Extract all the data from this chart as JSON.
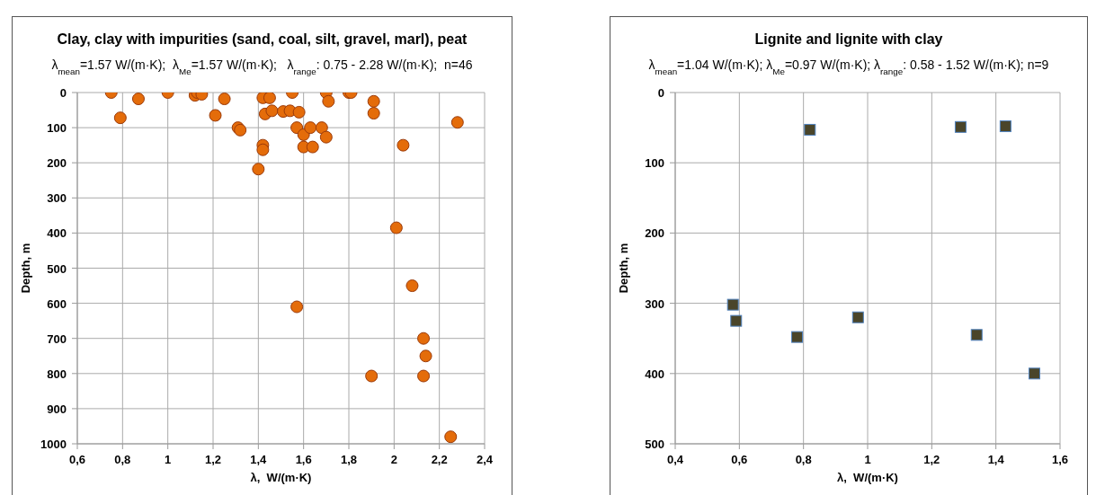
{
  "chart_data": [
    {
      "type": "scatter",
      "title": "Clay, clay with impurities (sand, coal, silt, gravel, marl), peat",
      "subtitle": "λ$_{mean}$=1.57 W/(m·K);  λ$_{Me}$=1.57 W/(m·K);   λ$_{range}$: 0.75 - 2.28 W/(m·K);  n=46",
      "xlabel": "λ,  W/(m·K)",
      "ylabel": "Depth, m",
      "x": [
        0.75,
        0.79,
        0.87,
        1.0,
        1.12,
        1.13,
        1.15,
        1.21,
        1.25,
        1.31,
        1.32,
        1.4,
        1.42,
        1.45,
        1.43,
        1.46,
        1.42,
        1.42,
        1.51,
        1.54,
        1.55,
        1.58,
        1.57,
        1.6,
        1.63,
        1.68,
        1.7,
        1.6,
        1.64,
        1.7,
        1.71,
        1.8,
        1.81,
        1.91,
        1.91,
        2.28,
        2.04,
        2.01,
        2.08,
        1.57,
        2.13,
        2.14,
        1.9,
        2.13,
        2.25
      ],
      "values": [
        0,
        72,
        18,
        0,
        8,
        0,
        5,
        65,
        18,
        100,
        107,
        218,
        15,
        15,
        61,
        52,
        150,
        163,
        54,
        52,
        0,
        56,
        100,
        120,
        100,
        100,
        0,
        155,
        155,
        127,
        25,
        0,
        0,
        25,
        59,
        85,
        150,
        385,
        550,
        610,
        700,
        750,
        807,
        807,
        980
      ],
      "color": "#e46c0a",
      "marker": "circle",
      "grid": true,
      "xlim": [
        0.6,
        2.4
      ],
      "xticks": [
        {
          "value": 0.6,
          "label": "0,6"
        },
        {
          "value": 0.8,
          "label": "0,8"
        },
        {
          "value": 1,
          "label": "1"
        },
        {
          "value": 1.2,
          "label": "1,2"
        },
        {
          "value": 1.4,
          "label": "1,4"
        },
        {
          "value": 1.6,
          "label": "1,6"
        },
        {
          "value": 1.8,
          "label": "1,8"
        },
        {
          "value": 2,
          "label": "2"
        },
        {
          "value": 2.2,
          "label": "2,2"
        },
        {
          "value": 2.4,
          "label": "2,4"
        }
      ],
      "ylim": [
        1000,
        0
      ],
      "yticks": [
        0,
        100,
        200,
        300,
        400,
        500,
        600,
        700,
        800,
        900,
        1000
      ]
    },
    {
      "type": "scatter",
      "title": "Lignite and lignite with clay",
      "subtitle": "λ$_{mean}$=1.04 W/(m·K); λ$_{Me}$=0.97 W/(m·K); λ$_{range}$: 0.58 - 1.52 W/(m·K); n=9",
      "xlabel": "λ,  W/(m·K)",
      "ylabel": "Depth, m",
      "x": [
        0.82,
        1.29,
        1.43,
        0.58,
        0.59,
        0.78,
        0.97,
        1.34,
        1.52
      ],
      "values": [
        53,
        49,
        48,
        302,
        325,
        348,
        320,
        345,
        400
      ],
      "color": "#4a452a",
      "marker": "square",
      "grid": true,
      "xlim": [
        0.4,
        1.6
      ],
      "xticks": [
        {
          "value": 0.4,
          "label": "0,4"
        },
        {
          "value": 0.6,
          "label": "0,6"
        },
        {
          "value": 0.8,
          "label": "0,8"
        },
        {
          "value": 1,
          "label": "1"
        },
        {
          "value": 1.2,
          "label": "1,2"
        },
        {
          "value": 1.4,
          "label": "1,4"
        },
        {
          "value": 1.6,
          "label": "1,6"
        }
      ],
      "ylim": [
        500,
        0
      ],
      "yticks": [
        0,
        100,
        200,
        300,
        400,
        500
      ]
    }
  ]
}
